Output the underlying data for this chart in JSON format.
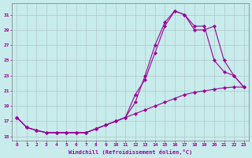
{
  "xlabel": "Windchill (Refroidissement éolien,°C)",
  "bg_color": "#c8ecec",
  "grid_color": "#b0c8c8",
  "line_color": "#990099",
  "xlim": [
    -0.5,
    23.5
  ],
  "ylim": [
    14.5,
    32.5
  ],
  "yticks": [
    15,
    17,
    19,
    21,
    23,
    25,
    27,
    29,
    31
  ],
  "xticks": [
    0,
    1,
    2,
    3,
    4,
    5,
    6,
    7,
    8,
    9,
    10,
    11,
    12,
    13,
    14,
    15,
    16,
    17,
    18,
    19,
    20,
    21,
    22,
    23
  ],
  "line1_x": [
    0,
    1,
    2,
    3,
    4,
    5,
    6,
    7,
    8,
    9,
    10,
    11,
    12,
    13,
    14,
    15,
    16,
    17,
    18,
    19,
    20,
    21,
    22,
    23
  ],
  "line1_y": [
    17.5,
    16.2,
    15.8,
    15.5,
    15.5,
    15.5,
    15.5,
    15.5,
    16.0,
    16.5,
    17.0,
    17.5,
    18.0,
    18.5,
    19.0,
    19.5,
    20.0,
    20.5,
    20.8,
    21.0,
    21.2,
    21.4,
    21.5,
    21.5
  ],
  "line2_x": [
    0,
    1,
    2,
    3,
    4,
    5,
    6,
    7,
    8,
    9,
    10,
    11,
    12,
    13,
    14,
    15,
    16,
    17,
    18,
    19,
    20,
    21,
    22,
    23
  ],
  "line2_y": [
    17.5,
    16.2,
    15.8,
    15.5,
    15.5,
    15.5,
    15.5,
    15.5,
    16.0,
    16.5,
    17.0,
    17.5,
    19.5,
    23.0,
    27.0,
    30.0,
    31.5,
    31.0,
    29.5,
    29.5,
    25.0,
    23.5,
    23.0,
    21.5
  ],
  "line3_x": [
    0,
    1,
    2,
    3,
    4,
    5,
    6,
    7,
    8,
    9,
    10,
    11,
    12,
    13,
    14,
    15,
    16,
    17,
    18,
    19,
    20,
    21,
    22,
    23
  ],
  "line3_y": [
    17.5,
    16.2,
    15.8,
    15.5,
    15.5,
    15.5,
    15.5,
    15.5,
    16.0,
    16.5,
    17.0,
    17.5,
    20.5,
    22.5,
    26.0,
    29.5,
    31.5,
    31.0,
    29.0,
    29.0,
    29.5,
    25.0,
    23.0,
    21.5
  ]
}
